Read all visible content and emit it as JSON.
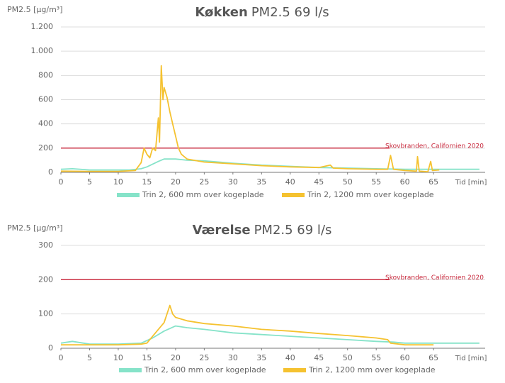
{
  "chart_data": [
    {
      "type": "line",
      "title": "Køkken",
      "title_suffix": "PM2.5   69 l/s",
      "ylabel": "PM2.5 [µg/m³]",
      "xlabel": "Tid [min]",
      "xlim": [
        0,
        74
      ],
      "xticks": [
        0,
        5,
        10,
        15,
        20,
        25,
        30,
        35,
        40,
        45,
        50,
        55,
        60,
        65
      ],
      "ylim": [
        0,
        1200
      ],
      "yticks": [
        0,
        200,
        400,
        600,
        800,
        {
          "value": 1000,
          "label": "1.000"
        },
        {
          "value": 1200,
          "label": "1.200"
        }
      ],
      "grid": true,
      "hline": {
        "value": 200,
        "label": "Skovbranden, Californien 2020",
        "color": "#c8283c"
      },
      "series": [
        {
          "name": "Trin 2, 600 mm over kogeplade",
          "color": "#86e3c9",
          "x": [
            0,
            2,
            5,
            8,
            12,
            14,
            15,
            17,
            18,
            20,
            22,
            25,
            30,
            35,
            40,
            45,
            50,
            55,
            60,
            65,
            70,
            73
          ],
          "values": [
            25,
            30,
            20,
            20,
            20,
            30,
            45,
            90,
            110,
            110,
            100,
            95,
            75,
            60,
            50,
            40,
            35,
            30,
            25,
            25,
            25,
            25
          ]
        },
        {
          "name": "Trin 2, 1200 mm over kogeplade",
          "color": "#f5c230",
          "x": [
            0,
            5,
            10,
            13,
            14,
            14.5,
            15,
            15.5,
            16,
            16.5,
            17,
            17.2,
            17.5,
            17.8,
            18,
            18.5,
            19,
            19.5,
            20,
            20.5,
            21,
            22,
            25,
            30,
            35,
            40,
            45,
            47,
            47.5,
            50,
            55,
            57,
            57.5,
            58,
            60,
            62,
            62.2,
            62.5,
            64,
            64.5,
            64.8,
            66
          ],
          "values": [
            10,
            8,
            8,
            15,
            80,
            200,
            150,
            120,
            200,
            180,
            450,
            250,
            880,
            600,
            700,
            620,
            500,
            400,
            300,
            200,
            150,
            110,
            85,
            70,
            55,
            45,
            40,
            60,
            35,
            30,
            25,
            25,
            140,
            25,
            15,
            10,
            130,
            10,
            5,
            90,
            15,
            20
          ]
        }
      ]
    },
    {
      "type": "line",
      "title": "Værelse",
      "title_suffix": "PM2.5   69 l/s",
      "ylabel": "PM2.5 [µg/m³]",
      "xlabel": "Tid [min]",
      "xlim": [
        0,
        74
      ],
      "xticks": [
        0,
        5,
        10,
        15,
        20,
        25,
        30,
        35,
        40,
        45,
        50,
        55,
        60,
        65
      ],
      "ylim": [
        0,
        300
      ],
      "yticks": [
        0,
        100,
        200,
        300
      ],
      "grid": true,
      "hline": {
        "value": 200,
        "label": "Skovbranden, Californien 2020",
        "color": "#c8283c"
      },
      "series": [
        {
          "name": "Trin 2, 600 mm over kogeplade",
          "color": "#86e3c9",
          "x": [
            0,
            2,
            5,
            10,
            14,
            16,
            18,
            20,
            22,
            25,
            30,
            35,
            40,
            45,
            50,
            55,
            58,
            60,
            65,
            70,
            73
          ],
          "values": [
            15,
            20,
            12,
            12,
            15,
            30,
            50,
            65,
            60,
            55,
            45,
            40,
            35,
            30,
            25,
            20,
            18,
            15,
            15,
            15,
            15
          ]
        },
        {
          "name": "Trin 2, 1200 mm over kogeplade",
          "color": "#f5c230",
          "x": [
            0,
            5,
            10,
            14,
            15,
            16,
            17,
            18,
            19,
            19.5,
            20,
            22,
            25,
            30,
            35,
            40,
            45,
            50,
            55,
            57,
            57.5,
            60,
            65
          ],
          "values": [
            10,
            10,
            10,
            12,
            15,
            35,
            55,
            75,
            125,
            100,
            90,
            80,
            72,
            65,
            55,
            50,
            43,
            37,
            30,
            25,
            15,
            10,
            10
          ]
        }
      ]
    }
  ]
}
